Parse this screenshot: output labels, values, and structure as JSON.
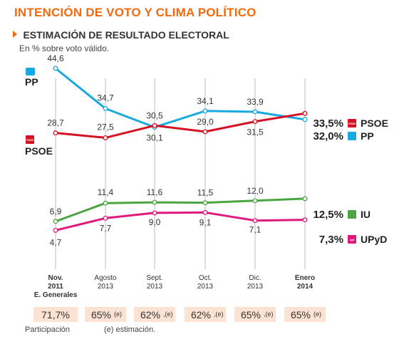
{
  "header": {
    "title": "INTENCIÓN DE VOTO Y CLIMA POLÍTICO",
    "subtitle": "ESTIMACIÓN DE RESULTADO ELECTORAL",
    "unit_note": "En % sobre voto válido."
  },
  "footer": {
    "participation_label": "Participación",
    "estimation_note": "(e) estimación."
  },
  "chart_data": {
    "type": "line",
    "categories": [
      [
        "Nov.",
        "2011",
        "E. Generales"
      ],
      [
        "Agosto",
        "2013"
      ],
      [
        "Sept.",
        "2013"
      ],
      [
        "Oct.",
        "2013"
      ],
      [
        "Dic.",
        "2013"
      ],
      [
        "Enero",
        "2014"
      ]
    ],
    "bold_categories": [
      0,
      5
    ],
    "series": [
      {
        "name": "PP",
        "color": "#1aa9df",
        "icon": "pp-logo-icon",
        "values": [
          44.6,
          34.7,
          30.1,
          34.1,
          33.9,
          32.0
        ],
        "labels": [
          "44,6",
          "34,7",
          "30,1",
          "34,1",
          "33,9",
          "32,0%"
        ]
      },
      {
        "name": "PSOE",
        "color": "#d51224",
        "icon": "psoe-logo-icon",
        "icon_text": "PSOE",
        "values": [
          28.7,
          27.5,
          30.5,
          29.0,
          31.5,
          33.5
        ],
        "labels": [
          "28,7",
          "27,5",
          "30,5",
          "29,0",
          "31,5",
          "33,5%"
        ]
      },
      {
        "name": "IU",
        "color": "#49a642",
        "icon": "iu-logo-icon",
        "values": [
          6.9,
          11.4,
          11.6,
          11.5,
          12.0,
          12.5
        ],
        "labels": [
          "6,9",
          "11,4",
          "11,6",
          "11,5",
          "12,0",
          "12,5%"
        ]
      },
      {
        "name": "UPyD",
        "color": "#e0197d",
        "icon": "upyd-logo-icon",
        "icon_text": "upd",
        "values": [
          4.7,
          7.7,
          9.0,
          9.1,
          7.1,
          7.3
        ],
        "labels": [
          "4,7",
          "7,7",
          "9,0",
          "9,1",
          "7,1",
          "7,3%"
        ]
      }
    ],
    "participation": [
      "71,7%",
      "65%",
      "62%",
      "62%",
      "65%",
      "65%"
    ],
    "participation_marks": [
      "",
      "(e)",
      ",(e)",
      ",(e)",
      ",(e)",
      "(e)"
    ],
    "start_party_labels": [
      "PP",
      "PSOE"
    ]
  }
}
